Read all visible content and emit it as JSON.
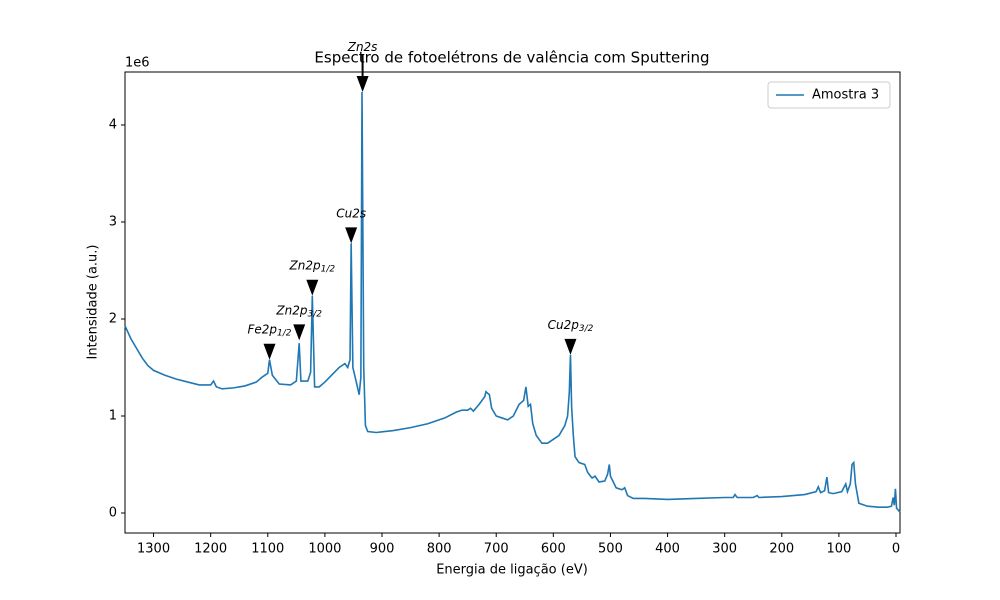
{
  "chart_data": {
    "type": "line",
    "title": "Espectro de fotoelétrons de valência com Sputtering",
    "xlabel": "Energia de ligação (eV)",
    "ylabel": "Intensidade (a.u.)",
    "y_offset_text": "1e6",
    "xlim": [
      1350,
      -7
    ],
    "ylim": [
      -0.206,
      4.546
    ],
    "xticks": [
      1300,
      1200,
      1100,
      1000,
      900,
      800,
      700,
      600,
      500,
      400,
      300,
      200,
      100,
      0
    ],
    "yticks": [
      0,
      1,
      2,
      3,
      4
    ],
    "legend": "upper right",
    "x": [
      1350,
      1340,
      1330,
      1320,
      1310,
      1300,
      1280,
      1260,
      1240,
      1220,
      1200,
      1195,
      1190,
      1180,
      1160,
      1140,
      1120,
      1110,
      1100,
      1097,
      1092,
      1080,
      1060,
      1050,
      1045,
      1042,
      1030,
      1025,
      1022,
      1018,
      1010,
      1000,
      990,
      975,
      965,
      960,
      956,
      954,
      951,
      945,
      940,
      937,
      935,
      932,
      929,
      925,
      910,
      880,
      850,
      820,
      790,
      770,
      760,
      750,
      745,
      740,
      730,
      720,
      718,
      712,
      708,
      700,
      690,
      680,
      670,
      660,
      652,
      648,
      644,
      640,
      636,
      630,
      620,
      610,
      600,
      590,
      580,
      575,
      572,
      570,
      568,
      565,
      562,
      555,
      545,
      540,
      535,
      532,
      527,
      520,
      510,
      505,
      502,
      500,
      490,
      480,
      475,
      470,
      460,
      440,
      400,
      350,
      300,
      285,
      282,
      278,
      250,
      243,
      240,
      200,
      160,
      140,
      136,
      132,
      125,
      121,
      118,
      110,
      95,
      88,
      85,
      80,
      77,
      74,
      71,
      65,
      50,
      30,
      15,
      8,
      5,
      3,
      1,
      -1,
      -7
    ],
    "series": [
      {
        "name": "Amostra 3",
        "color": "#1f77b4",
        "values": [
          1.93,
          1.8,
          1.7,
          1.6,
          1.52,
          1.47,
          1.42,
          1.38,
          1.35,
          1.32,
          1.32,
          1.36,
          1.3,
          1.28,
          1.29,
          1.31,
          1.35,
          1.4,
          1.44,
          1.58,
          1.42,
          1.33,
          1.32,
          1.36,
          1.75,
          1.36,
          1.36,
          1.45,
          2.24,
          1.3,
          1.3,
          1.35,
          1.41,
          1.5,
          1.54,
          1.5,
          1.58,
          2.78,
          1.5,
          1.35,
          1.22,
          1.4,
          4.34,
          1.5,
          0.9,
          0.84,
          0.83,
          0.85,
          0.88,
          0.92,
          0.98,
          1.04,
          1.06,
          1.06,
          1.08,
          1.05,
          1.12,
          1.2,
          1.25,
          1.22,
          1.08,
          1.0,
          0.98,
          0.96,
          1.0,
          1.12,
          1.16,
          1.3,
          1.1,
          1.12,
          0.92,
          0.8,
          0.72,
          0.72,
          0.76,
          0.8,
          0.9,
          1.0,
          1.25,
          1.63,
          1.1,
          0.8,
          0.58,
          0.52,
          0.5,
          0.42,
          0.38,
          0.36,
          0.38,
          0.32,
          0.33,
          0.4,
          0.5,
          0.38,
          0.26,
          0.24,
          0.26,
          0.18,
          0.15,
          0.15,
          0.14,
          0.15,
          0.16,
          0.16,
          0.19,
          0.16,
          0.16,
          0.18,
          0.16,
          0.17,
          0.19,
          0.22,
          0.27,
          0.21,
          0.23,
          0.37,
          0.21,
          0.2,
          0.22,
          0.3,
          0.22,
          0.3,
          0.5,
          0.52,
          0.3,
          0.1,
          0.07,
          0.06,
          0.06,
          0.07,
          0.16,
          0.08,
          0.25,
          0.05,
          0.01
        ]
      }
    ],
    "annotations": [
      {
        "label": "Zn2s",
        "x": 934,
        "y": 4.34
      },
      {
        "label": "Cu2s",
        "x": 954,
        "y": 2.78
      },
      {
        "label": "Zn2p",
        "sub": "1/2",
        "x": 1022,
        "y": 2.24
      },
      {
        "label": "Zn2p",
        "sub": "3/2",
        "x": 1045,
        "y": 1.78
      },
      {
        "label": "Fe2p",
        "sub": "1/2",
        "x": 1097,
        "y": 1.58
      },
      {
        "label": "Cu2p",
        "sub": "3/2",
        "x": 570,
        "y": 1.63
      }
    ]
  }
}
